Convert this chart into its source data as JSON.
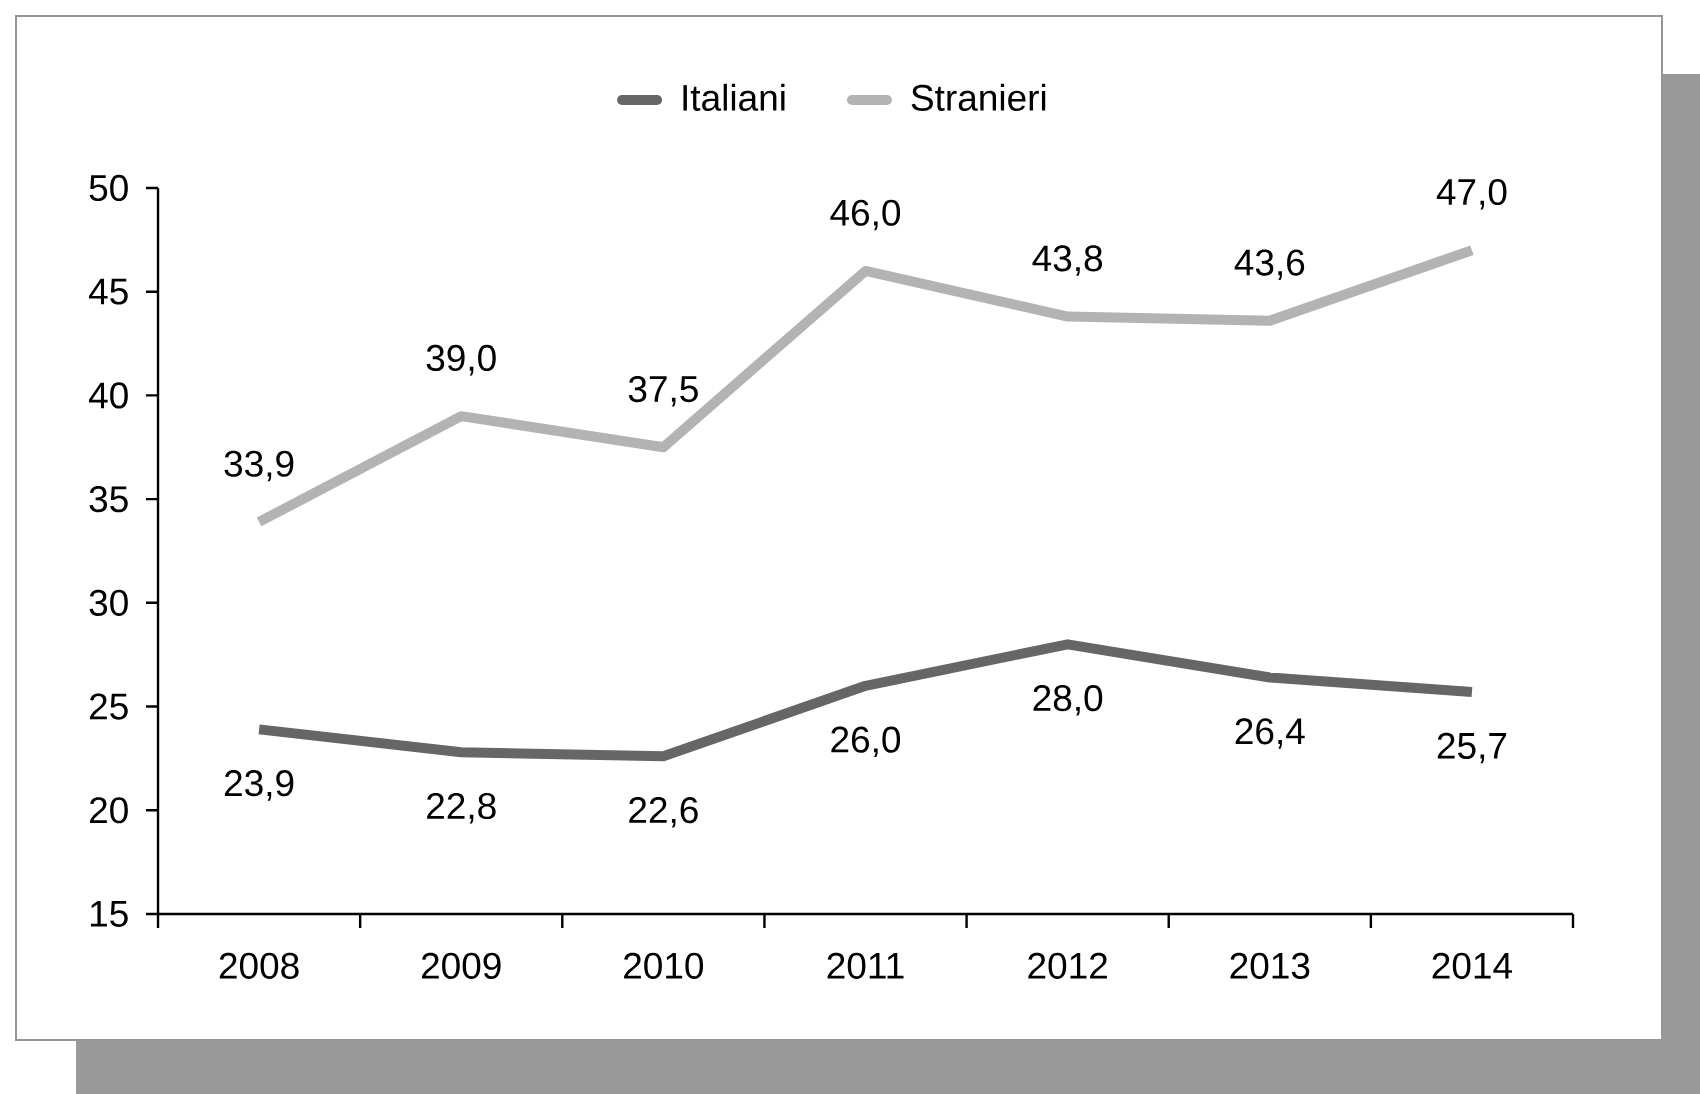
{
  "chart_data": {
    "type": "line",
    "categories": [
      "2008",
      "2009",
      "2010",
      "2011",
      "2012",
      "2013",
      "2014"
    ],
    "series": [
      {
        "name": "Italiani",
        "color": "#666666",
        "values": [
          23.9,
          22.8,
          22.6,
          26.0,
          28.0,
          26.4,
          25.7
        ],
        "value_labels": [
          "23,9",
          "22,8",
          "22,6",
          "26,0",
          "28,0",
          "26,4",
          "25,7"
        ]
      },
      {
        "name": "Stranieri",
        "color": "#b3b3b3",
        "values": [
          33.9,
          39.0,
          37.5,
          46.0,
          43.8,
          43.6,
          47.0
        ],
        "value_labels": [
          "33,9",
          "39,0",
          "37,5",
          "46,0",
          "43,8",
          "43,6",
          "47,0"
        ]
      }
    ],
    "ylim": [
      15,
      50
    ],
    "yticks": [
      15,
      20,
      25,
      30,
      35,
      40,
      45,
      50
    ],
    "legend": "top",
    "line_style": "solid"
  }
}
